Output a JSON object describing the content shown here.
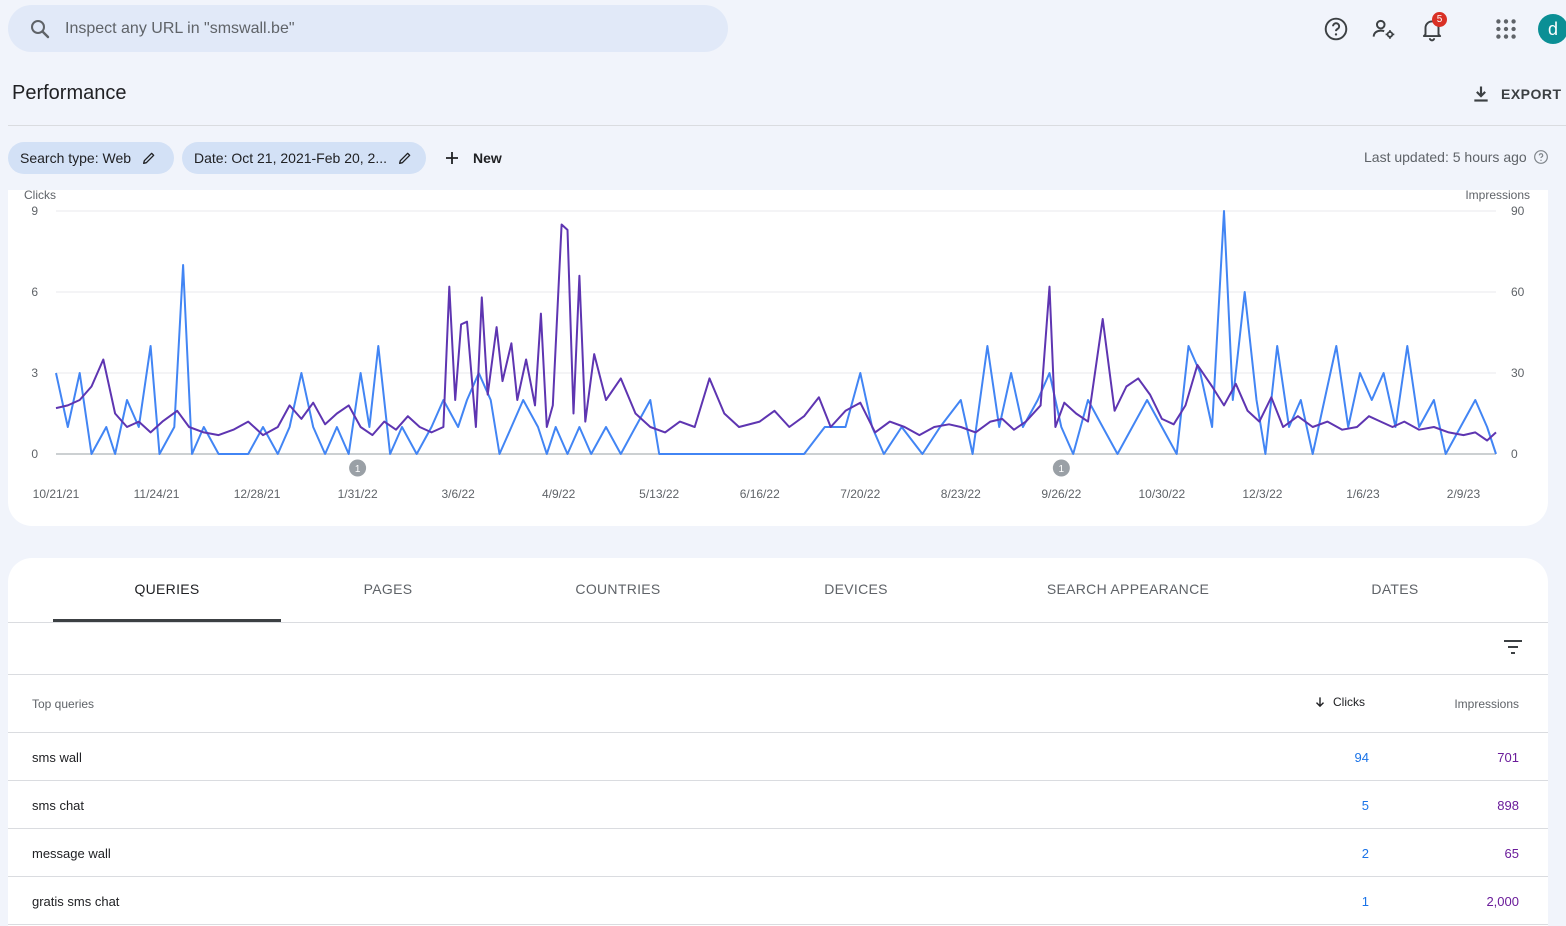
{
  "search": {
    "placeholder": "Inspect any URL in \"smswall.be\""
  },
  "topbar": {
    "icons": [
      "help-icon",
      "manage-users-icon",
      "notifications-icon",
      "apps-grid-icon"
    ],
    "notification_count": "5",
    "avatar_letter": "d"
  },
  "header": {
    "title": "Performance",
    "export_label": "EXPORT"
  },
  "filters": {
    "chips": [
      {
        "label": "Search type: Web"
      },
      {
        "label": "Date: Oct 21, 2021-Feb 20, 2..."
      }
    ],
    "new_label": "New",
    "last_updated": "Last updated: 5 hours ago"
  },
  "chart_data": {
    "type": "line",
    "left_axis_label": "Clicks",
    "right_axis_label": "Impressions",
    "left_ticks": [
      0,
      3,
      6,
      9
    ],
    "right_ticks": [
      0,
      30,
      60,
      90
    ],
    "ylim_left": [
      0,
      9
    ],
    "ylim_right": [
      0,
      90
    ],
    "x_tick_labels": [
      "10/21/21",
      "11/24/21",
      "12/28/21",
      "1/31/22",
      "3/6/22",
      "4/9/22",
      "5/13/22",
      "6/16/22",
      "7/20/22",
      "8/23/22",
      "9/26/22",
      "10/30/22",
      "12/3/22",
      "1/6/23",
      "2/9/23"
    ],
    "annotations": [
      {
        "label": "1",
        "at": "1/31/22"
      },
      {
        "label": "1",
        "at": "9/26/22"
      }
    ],
    "series": [
      {
        "name": "Clicks",
        "axis": "left",
        "color": "#4285f4",
        "points": [
          [
            "10/21/21",
            3
          ],
          [
            "10/25/21",
            1
          ],
          [
            "10/29/21",
            3
          ],
          [
            "11/2/21",
            0
          ],
          [
            "11/7/21",
            1
          ],
          [
            "11/10/21",
            0
          ],
          [
            "11/14/21",
            2
          ],
          [
            "11/18/21",
            1
          ],
          [
            "11/22/21",
            4
          ],
          [
            "11/25/21",
            0
          ],
          [
            "11/30/21",
            1
          ],
          [
            "12/3/21",
            7
          ],
          [
            "12/6/21",
            0
          ],
          [
            "12/10/21",
            1
          ],
          [
            "12/15/21",
            0
          ],
          [
            "12/20/21",
            0
          ],
          [
            "12/25/21",
            0
          ],
          [
            "12/30/21",
            1
          ],
          [
            "1/4/22",
            0
          ],
          [
            "1/8/22",
            1
          ],
          [
            "1/12/22",
            3
          ],
          [
            "1/16/22",
            1
          ],
          [
            "1/20/22",
            0
          ],
          [
            "1/24/22",
            1
          ],
          [
            "1/28/22",
            0
          ],
          [
            "2/1/22",
            3
          ],
          [
            "2/4/22",
            1
          ],
          [
            "2/7/22",
            4
          ],
          [
            "2/11/22",
            0
          ],
          [
            "2/15/22",
            1
          ],
          [
            "2/20/22",
            0
          ],
          [
            "2/25/22",
            1
          ],
          [
            "3/1/22",
            2
          ],
          [
            "3/6/22",
            1
          ],
          [
            "3/9/22",
            2
          ],
          [
            "3/13/22",
            3
          ],
          [
            "3/17/22",
            2
          ],
          [
            "3/20/22",
            0
          ],
          [
            "3/24/22",
            1
          ],
          [
            "3/28/22",
            2
          ],
          [
            "4/2/22",
            1
          ],
          [
            "4/5/22",
            0
          ],
          [
            "4/8/22",
            1
          ],
          [
            "4/12/22",
            0
          ],
          [
            "4/16/22",
            1
          ],
          [
            "4/20/22",
            0
          ],
          [
            "4/25/22",
            1
          ],
          [
            "4/30/22",
            0
          ],
          [
            "5/5/22",
            1
          ],
          [
            "5/10/22",
            2
          ],
          [
            "5/13/22",
            0
          ],
          [
            "5/20/22",
            0
          ],
          [
            "6/1/22",
            0
          ],
          [
            "6/16/22",
            0
          ],
          [
            "7/1/22",
            0
          ],
          [
            "7/8/22",
            1
          ],
          [
            "7/15/22",
            1
          ],
          [
            "7/20/22",
            3
          ],
          [
            "7/24/22",
            1
          ],
          [
            "7/28/22",
            0
          ],
          [
            "8/3/22",
            1
          ],
          [
            "8/10/22",
            0
          ],
          [
            "8/16/22",
            1
          ],
          [
            "8/23/22",
            2
          ],
          [
            "8/27/22",
            0
          ],
          [
            "9/1/22",
            4
          ],
          [
            "9/5/22",
            1
          ],
          [
            "9/9/22",
            3
          ],
          [
            "9/13/22",
            1
          ],
          [
            "9/18/22",
            2
          ],
          [
            "9/22/22",
            3
          ],
          [
            "9/26/22",
            1
          ],
          [
            "9/30/22",
            0
          ],
          [
            "10/5/22",
            2
          ],
          [
            "10/10/22",
            1
          ],
          [
            "10/15/22",
            0
          ],
          [
            "10/20/22",
            1
          ],
          [
            "10/25/22",
            2
          ],
          [
            "10/30/22",
            1
          ],
          [
            "11/4/22",
            0
          ],
          [
            "11/8/22",
            4
          ],
          [
            "11/12/22",
            3
          ],
          [
            "11/16/22",
            1
          ],
          [
            "11/20/22",
            9
          ],
          [
            "11/23/22",
            2
          ],
          [
            "11/27/22",
            6
          ],
          [
            "12/1/22",
            2
          ],
          [
            "12/4/22",
            0
          ],
          [
            "12/8/22",
            4
          ],
          [
            "12/12/22",
            1
          ],
          [
            "12/16/22",
            2
          ],
          [
            "12/20/22",
            0
          ],
          [
            "12/24/22",
            2
          ],
          [
            "12/28/22",
            4
          ],
          [
            "1/1/23",
            1
          ],
          [
            "1/5/23",
            3
          ],
          [
            "1/9/23",
            2
          ],
          [
            "1/13/23",
            3
          ],
          [
            "1/17/23",
            1
          ],
          [
            "1/21/23",
            4
          ],
          [
            "1/25/23",
            1
          ],
          [
            "1/30/23",
            2
          ],
          [
            "2/3/23",
            0
          ],
          [
            "2/8/23",
            1
          ],
          [
            "2/13/23",
            2
          ],
          [
            "2/17/23",
            1
          ],
          [
            "2/20/23",
            0
          ]
        ]
      },
      {
        "name": "Impressions",
        "axis": "right",
        "color": "#5e35b1",
        "points": [
          [
            "10/21/21",
            17
          ],
          [
            "10/25/21",
            18
          ],
          [
            "10/29/21",
            20
          ],
          [
            "11/2/21",
            25
          ],
          [
            "11/6/21",
            35
          ],
          [
            "11/10/21",
            15
          ],
          [
            "11/14/21",
            10
          ],
          [
            "11/18/21",
            12
          ],
          [
            "11/22/21",
            8
          ],
          [
            "11/26/21",
            12
          ],
          [
            "12/1/21",
            16
          ],
          [
            "12/5/21",
            10
          ],
          [
            "12/10/21",
            8
          ],
          [
            "12/15/21",
            7
          ],
          [
            "12/20/21",
            9
          ],
          [
            "12/25/21",
            12
          ],
          [
            "12/30/21",
            7
          ],
          [
            "1/4/22",
            10
          ],
          [
            "1/8/22",
            18
          ],
          [
            "1/12/22",
            13
          ],
          [
            "1/16/22",
            19
          ],
          [
            "1/20/22",
            11
          ],
          [
            "1/24/22",
            15
          ],
          [
            "1/28/22",
            18
          ],
          [
            "2/1/22",
            10
          ],
          [
            "2/5/22",
            7
          ],
          [
            "2/9/22",
            12
          ],
          [
            "2/13/22",
            9
          ],
          [
            "2/17/22",
            14
          ],
          [
            "2/21/22",
            10
          ],
          [
            "2/25/22",
            8
          ],
          [
            "3/1/22",
            10
          ],
          [
            "3/3/22",
            62
          ],
          [
            "3/5/22",
            20
          ],
          [
            "3/7/22",
            48
          ],
          [
            "3/9/22",
            49
          ],
          [
            "3/12/22",
            10
          ],
          [
            "3/14/22",
            58
          ],
          [
            "3/16/22",
            22
          ],
          [
            "3/19/22",
            47
          ],
          [
            "3/21/22",
            27
          ],
          [
            "3/24/22",
            41
          ],
          [
            "3/26/22",
            20
          ],
          [
            "3/29/22",
            35
          ],
          [
            "4/1/22",
            18
          ],
          [
            "4/3/22",
            52
          ],
          [
            "4/5/22",
            10
          ],
          [
            "4/7/22",
            18
          ],
          [
            "4/10/22",
            85
          ],
          [
            "4/12/22",
            83
          ],
          [
            "4/14/22",
            15
          ],
          [
            "4/16/22",
            66
          ],
          [
            "4/18/22",
            12
          ],
          [
            "4/21/22",
            37
          ],
          [
            "4/25/22",
            20
          ],
          [
            "4/30/22",
            28
          ],
          [
            "5/5/22",
            15
          ],
          [
            "5/10/22",
            10
          ],
          [
            "5/15/22",
            8
          ],
          [
            "5/20/22",
            12
          ],
          [
            "5/25/22",
            10
          ],
          [
            "5/30/22",
            28
          ],
          [
            "6/4/22",
            15
          ],
          [
            "6/9/22",
            10
          ],
          [
            "6/16/22",
            12
          ],
          [
            "6/21/22",
            16
          ],
          [
            "6/26/22",
            10
          ],
          [
            "7/1/22",
            14
          ],
          [
            "7/6/22",
            21
          ],
          [
            "7/10/22",
            10
          ],
          [
            "7/15/22",
            16
          ],
          [
            "7/20/22",
            19
          ],
          [
            "7/25/22",
            8
          ],
          [
            "7/30/22",
            12
          ],
          [
            "8/4/22",
            10
          ],
          [
            "8/9/22",
            7
          ],
          [
            "8/14/22",
            10
          ],
          [
            "8/19/22",
            11
          ],
          [
            "8/23/22",
            10
          ],
          [
            "8/28/22",
            8
          ],
          [
            "9/2/22",
            12
          ],
          [
            "9/6/22",
            13
          ],
          [
            "9/10/22",
            9
          ],
          [
            "9/14/22",
            12
          ],
          [
            "9/19/22",
            18
          ],
          [
            "9/22/22",
            62
          ],
          [
            "9/24/22",
            10
          ],
          [
            "9/27/22",
            19
          ],
          [
            "10/1/22",
            15
          ],
          [
            "10/5/22",
            12
          ],
          [
            "10/10/22",
            50
          ],
          [
            "10/14/22",
            16
          ],
          [
            "10/18/22",
            25
          ],
          [
            "10/22/22",
            28
          ],
          [
            "10/26/22",
            22
          ],
          [
            "10/30/22",
            13
          ],
          [
            "11/3/22",
            11
          ],
          [
            "11/7/22",
            18
          ],
          [
            "11/11/22",
            33
          ],
          [
            "11/16/22",
            25
          ],
          [
            "11/20/22",
            18
          ],
          [
            "11/24/22",
            26
          ],
          [
            "11/28/22",
            16
          ],
          [
            "12/2/22",
            12
          ],
          [
            "12/6/22",
            21
          ],
          [
            "12/10/22",
            10
          ],
          [
            "12/15/22",
            14
          ],
          [
            "12/20/22",
            10
          ],
          [
            "12/25/22",
            12
          ],
          [
            "12/30/22",
            9
          ],
          [
            "1/4/23",
            10
          ],
          [
            "1/8/23",
            14
          ],
          [
            "1/12/23",
            12
          ],
          [
            "1/16/23",
            10
          ],
          [
            "1/20/23",
            12
          ],
          [
            "1/25/23",
            9
          ],
          [
            "1/30/23",
            10
          ],
          [
            "2/4/23",
            8
          ],
          [
            "2/9/23",
            7
          ],
          [
            "2/13/23",
            8
          ],
          [
            "2/17/23",
            5
          ],
          [
            "2/20/23",
            8
          ]
        ]
      }
    ]
  },
  "tabs": [
    "QUERIES",
    "PAGES",
    "COUNTRIES",
    "DEVICES",
    "SEARCH APPEARANCE",
    "DATES"
  ],
  "table": {
    "header_query": "Top queries",
    "header_clicks": "Clicks",
    "header_impressions": "Impressions",
    "rows": [
      {
        "query": "sms wall",
        "clicks": "94",
        "impressions": "701"
      },
      {
        "query": "sms chat",
        "clicks": "5",
        "impressions": "898"
      },
      {
        "query": "message wall",
        "clicks": "2",
        "impressions": "65"
      },
      {
        "query": "gratis sms chat",
        "clicks": "1",
        "impressions": "2,000"
      }
    ]
  }
}
